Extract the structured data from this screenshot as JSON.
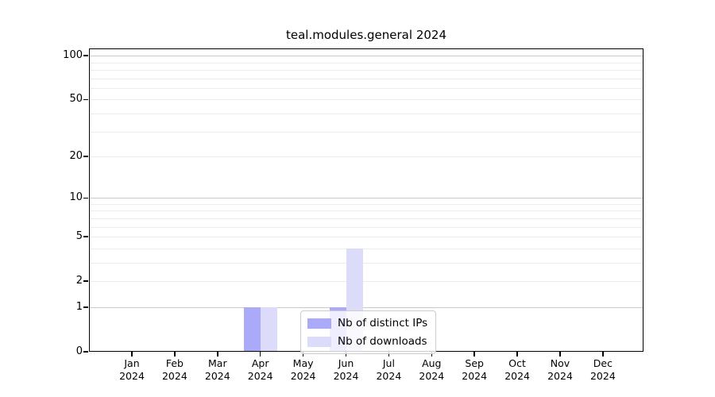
{
  "chart_data": {
    "type": "bar",
    "title": "teal.modules.general 2024",
    "categories": [
      "Jan",
      "Feb",
      "Mar",
      "Apr",
      "May",
      "Jun",
      "Jul",
      "Aug",
      "Sep",
      "Oct",
      "Nov",
      "Dec"
    ],
    "category_year": "2024",
    "xlabel": "",
    "ylabel": "",
    "yscale": "log1p",
    "ylim": [
      0,
      110
    ],
    "ytick_labels": [
      "0",
      "1",
      "2",
      "5",
      "10",
      "20",
      "50",
      "100"
    ],
    "ytick_values": [
      0,
      1,
      2,
      5,
      10,
      20,
      50,
      100
    ],
    "gridlines_major": [
      1,
      10,
      100
    ],
    "gridlines_minor": [
      2,
      3,
      4,
      5,
      6,
      7,
      8,
      9,
      20,
      30,
      40,
      50,
      60,
      70,
      80,
      90
    ],
    "grid": true,
    "legend_position": "lower-center",
    "series": [
      {
        "name": "Nb of distinct IPs",
        "color": "#aaaaf8",
        "values": [
          0,
          0,
          0,
          1,
          0,
          1,
          0,
          0,
          0,
          0,
          0,
          0
        ]
      },
      {
        "name": "Nb of downloads",
        "color": "#dcdcfa",
        "values": [
          0,
          0,
          0,
          1,
          0,
          4,
          0,
          0,
          0,
          0,
          0,
          0
        ]
      }
    ]
  },
  "colors": {
    "grid_major": "#c9c9c9",
    "grid_minor": "#ececec",
    "spine": "#000000",
    "legend_border": "#cccccc",
    "background": "#ffffff"
  }
}
